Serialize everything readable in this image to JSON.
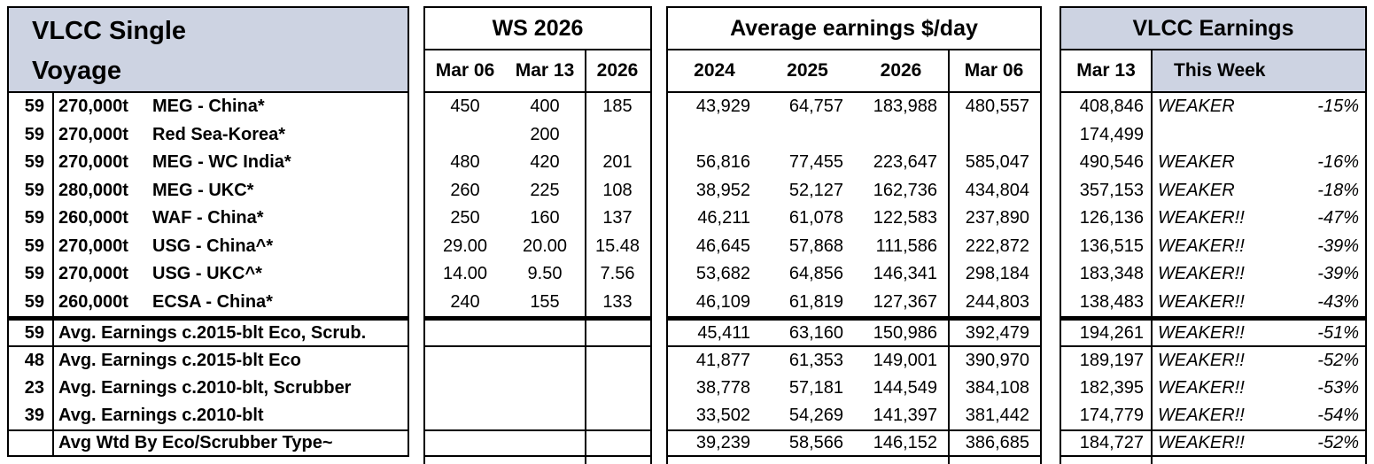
{
  "colors": {
    "header_bg": "#cdd3e2",
    "border": "#000000",
    "text": "#000000"
  },
  "panels": {
    "single_voyage": {
      "title_line1": "VLCC Single",
      "title_line2": "Voyage"
    },
    "ws2026": {
      "title": "WS 2026",
      "columns": [
        "Mar 06",
        "Mar 13",
        "2026"
      ]
    },
    "avg_earnings": {
      "title": "Average earnings $/day",
      "columns": [
        "2024",
        "2025",
        "2026",
        "Mar 06"
      ]
    },
    "vlcc_earnings": {
      "title": "VLCC Earnings",
      "columns": [
        "Mar 13",
        "This Week"
      ]
    }
  },
  "groups": [
    {
      "name": "routes",
      "rows": [
        {
          "count": "59",
          "size": "270,000t",
          "route": "MEG - China*",
          "ws": [
            "450",
            "400",
            "185"
          ],
          "earn": [
            "43,929",
            "64,757",
            "183,988",
            "480,557"
          ],
          "wk_val": "408,846",
          "wk_dir": "WEAKER",
          "wk_pct": "-15%"
        },
        {
          "count": "59",
          "size": "270,000t",
          "route": "Red Sea-Korea*",
          "ws": [
            "",
            "200",
            ""
          ],
          "earn": [
            "",
            "",
            "",
            ""
          ],
          "wk_val": "174,499",
          "wk_dir": "",
          "wk_pct": ""
        },
        {
          "count": "59",
          "size": "270,000t",
          "route": "MEG - WC India*",
          "ws": [
            "480",
            "420",
            "201"
          ],
          "earn": [
            "56,816",
            "77,455",
            "223,647",
            "585,047"
          ],
          "wk_val": "490,546",
          "wk_dir": "WEAKER",
          "wk_pct": "-16%"
        },
        {
          "count": "59",
          "size": "280,000t",
          "route": "MEG - UKC*",
          "ws": [
            "260",
            "225",
            "108"
          ],
          "earn": [
            "38,952",
            "52,127",
            "162,736",
            "434,804"
          ],
          "wk_val": "357,153",
          "wk_dir": "WEAKER",
          "wk_pct": "-18%"
        },
        {
          "count": "59",
          "size": "260,000t",
          "route": "WAF - China*",
          "ws": [
            "250",
            "160",
            "137"
          ],
          "earn": [
            "46,211",
            "61,078",
            "122,583",
            "237,890"
          ],
          "wk_val": "126,136",
          "wk_dir": "WEAKER!!",
          "wk_pct": "-47%"
        },
        {
          "count": "59",
          "size": "270,000t",
          "route": "USG - China^*",
          "ws": [
            "29.00",
            "20.00",
            "15.48"
          ],
          "earn": [
            "46,645",
            "57,868",
            "111,586",
            "222,872"
          ],
          "wk_val": "136,515",
          "wk_dir": "WEAKER!!",
          "wk_pct": "-39%"
        },
        {
          "count": "59",
          "size": "270,000t",
          "route": "USG - UKC^*",
          "ws": [
            "14.00",
            "9.50",
            "7.56"
          ],
          "earn": [
            "53,682",
            "64,856",
            "146,341",
            "298,184"
          ],
          "wk_val": "183,348",
          "wk_dir": "WEAKER!!",
          "wk_pct": "-39%"
        },
        {
          "count": "59",
          "size": "260,000t",
          "route": "ECSA - China*",
          "ws": [
            "240",
            "155",
            "133"
          ],
          "earn": [
            "46,109",
            "61,819",
            "127,367",
            "244,803"
          ],
          "wk_val": "138,483",
          "wk_dir": "WEAKER!!",
          "wk_pct": "-43%"
        }
      ]
    },
    {
      "name": "avg-2015-eco-scrub",
      "rows": [
        {
          "count": "59",
          "label": "Avg. Earnings c.2015-blt Eco, Scrub.",
          "ws": [
            "",
            "",
            ""
          ],
          "earn": [
            "45,411",
            "63,160",
            "150,986",
            "392,479"
          ],
          "wk_val": "194,261",
          "wk_dir": "WEAKER!!",
          "wk_pct": "-51%"
        }
      ]
    },
    {
      "name": "avg-mid",
      "rows": [
        {
          "count": "48",
          "label": "Avg. Earnings c.2015-blt Eco",
          "ws": [
            "",
            "",
            ""
          ],
          "earn": [
            "41,877",
            "61,353",
            "149,001",
            "390,970"
          ],
          "wk_val": "189,197",
          "wk_dir": "WEAKER!!",
          "wk_pct": "-52%"
        },
        {
          "count": "23",
          "label": "Avg. Earnings c.2010-blt, Scrubber",
          "ws": [
            "",
            "",
            ""
          ],
          "earn": [
            "38,778",
            "57,181",
            "144,549",
            "384,108"
          ],
          "wk_val": "182,395",
          "wk_dir": "WEAKER!!",
          "wk_pct": "-53%"
        },
        {
          "count": "39",
          "label": "Avg. Earnings c.2010-blt",
          "ws": [
            "",
            "",
            ""
          ],
          "earn": [
            "33,502",
            "54,269",
            "141,397",
            "381,442"
          ],
          "wk_val": "174,779",
          "wk_dir": "WEAKER!!",
          "wk_pct": "-54%"
        }
      ]
    },
    {
      "name": "avg-wtd",
      "rows": [
        {
          "count": "",
          "label": "Avg Wtd By Eco/Scrubber Type~",
          "ws": [
            "",
            "",
            ""
          ],
          "earn": [
            "39,239",
            "58,566",
            "146,152",
            "386,685"
          ],
          "wk_val": "184,727",
          "wk_dir": "WEAKER!!",
          "wk_pct": "-52%"
        }
      ]
    }
  ]
}
